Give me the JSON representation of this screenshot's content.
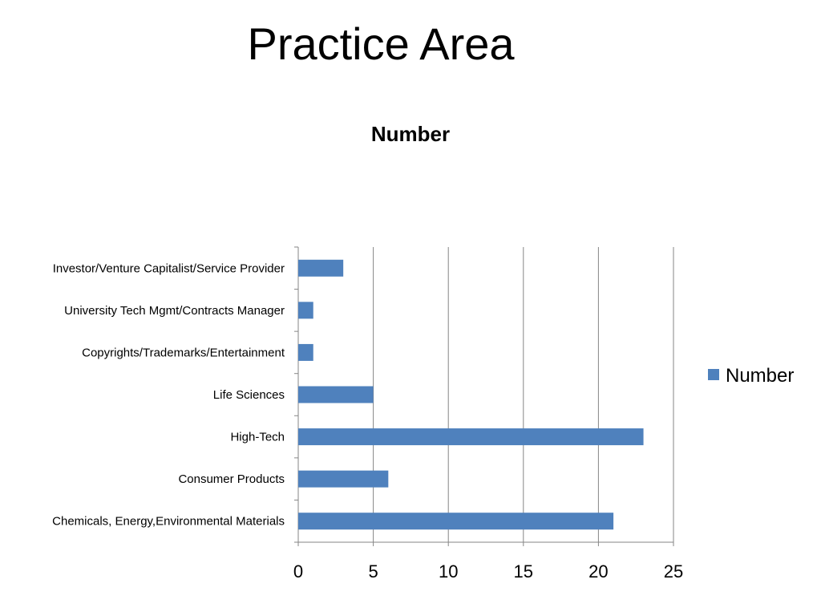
{
  "slide": {
    "title": "Practice Area"
  },
  "chart_data": {
    "type": "bar",
    "orientation": "horizontal",
    "title": "Number",
    "categories": [
      "Chemicals, Energy,Environmental Materials",
      "Consumer Products",
      "High-Tech",
      "Life Sciences",
      "Copyrights/Trademarks/Entertainment",
      "University Tech Mgmt/Contracts Manager",
      "Investor/Venture Capitalist/Service Provider"
    ],
    "series": [
      {
        "name": "Number",
        "values": [
          21,
          6,
          23,
          5,
          1,
          1,
          3
        ],
        "color": "#4F81BD"
      }
    ],
    "xlim": [
      0,
      25
    ],
    "xticks": [
      0,
      5,
      10,
      15,
      20,
      25
    ],
    "xlabel": "",
    "ylabel": "",
    "grid": "vertical",
    "legend": "right"
  }
}
